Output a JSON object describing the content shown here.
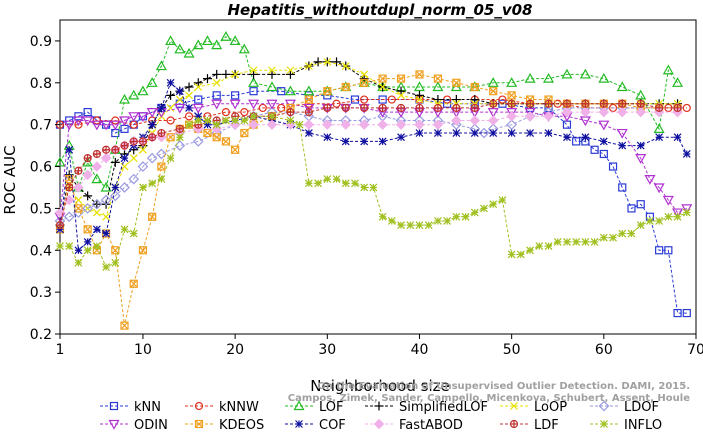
{
  "chart_data": {
    "type": "line",
    "title": "Hepatitis_withoutdupl_norm_05_v08",
    "xlabel": "Neighborhood size",
    "ylabel": "ROC AUC",
    "xlim": [
      1,
      70
    ],
    "ylim": [
      0.2,
      0.95
    ],
    "xticks": [
      1,
      10,
      20,
      30,
      40,
      50,
      60,
      70
    ],
    "yticks": [
      0.2,
      0.3,
      0.4,
      0.5,
      0.6,
      0.7,
      0.8,
      0.9
    ],
    "legend_position": "bottom",
    "watermark": "Campos, Zimek, Sander, Campello, Micenkova, Schubert, Assent, Houle",
    "watermark_line1": "On the Evaluation of Unsupervised Outlier Detection. DAMI, 2015.",
    "series": [
      {
        "name": "kNN",
        "color": "#2a3ad6",
        "marker": "square",
        "x": [
          1,
          2,
          3,
          4,
          5,
          6,
          7,
          8,
          9,
          10,
          12,
          14,
          16,
          18,
          20,
          22,
          25,
          28,
          30,
          33,
          36,
          40,
          43,
          46,
          49,
          52,
          54,
          56,
          57,
          58,
          59,
          60,
          61,
          62,
          63,
          64,
          65,
          66,
          67,
          68,
          69
        ],
        "y": [
          0.7,
          0.71,
          0.72,
          0.73,
          0.71,
          0.7,
          0.68,
          0.69,
          0.7,
          0.72,
          0.74,
          0.75,
          0.76,
          0.77,
          0.77,
          0.78,
          0.78,
          0.77,
          0.77,
          0.76,
          0.76,
          0.76,
          0.75,
          0.75,
          0.75,
          0.74,
          0.74,
          0.7,
          0.66,
          0.66,
          0.64,
          0.63,
          0.6,
          0.55,
          0.5,
          0.51,
          0.48,
          0.4,
          0.4,
          0.25,
          0.25
        ]
      },
      {
        "name": "kNNW",
        "color": "#e03020",
        "marker": "circle",
        "x": [
          1,
          3,
          5,
          7,
          9,
          11,
          13,
          15,
          17,
          19,
          21,
          23,
          25,
          28,
          31,
          34,
          37,
          40,
          43,
          46,
          49,
          52,
          55,
          58,
          61,
          64,
          67,
          69
        ],
        "y": [
          0.7,
          0.7,
          0.71,
          0.71,
          0.7,
          0.71,
          0.71,
          0.72,
          0.72,
          0.73,
          0.73,
          0.74,
          0.74,
          0.75,
          0.75,
          0.76,
          0.76,
          0.76,
          0.76,
          0.76,
          0.76,
          0.75,
          0.75,
          0.74,
          0.74,
          0.74,
          0.74,
          0.74
        ]
      },
      {
        "name": "LOF",
        "color": "#22bb22",
        "marker": "triangle-up",
        "x": [
          1,
          2,
          3,
          4,
          5,
          6,
          7,
          8,
          9,
          10,
          11,
          12,
          13,
          14,
          15,
          16,
          17,
          18,
          19,
          20,
          21,
          22,
          24,
          26,
          28,
          30,
          32,
          34,
          36,
          38,
          40,
          42,
          44,
          46,
          48,
          50,
          52,
          54,
          56,
          58,
          60,
          62,
          64,
          66,
          67,
          68
        ],
        "y": [
          0.61,
          0.65,
          0.55,
          0.61,
          0.57,
          0.55,
          0.64,
          0.76,
          0.77,
          0.78,
          0.8,
          0.84,
          0.9,
          0.88,
          0.87,
          0.89,
          0.9,
          0.89,
          0.91,
          0.9,
          0.88,
          0.8,
          0.79,
          0.78,
          0.78,
          0.78,
          0.79,
          0.8,
          0.79,
          0.79,
          0.79,
          0.79,
          0.79,
          0.79,
          0.8,
          0.8,
          0.81,
          0.81,
          0.82,
          0.82,
          0.81,
          0.79,
          0.77,
          0.69,
          0.83,
          0.8
        ]
      },
      {
        "name": "SimplifiedLOF",
        "color": "#000000",
        "marker": "plus",
        "x": [
          1,
          2,
          3,
          4,
          5,
          6,
          7,
          8,
          9,
          10,
          11,
          12,
          13,
          14,
          15,
          16,
          17,
          18,
          19,
          20,
          22,
          24,
          26,
          28,
          29,
          30,
          31,
          32,
          34,
          36,
          38,
          40,
          42,
          44,
          46,
          48,
          50,
          52,
          54,
          56,
          58,
          60,
          62,
          64,
          66,
          68
        ],
        "y": [
          0.46,
          0.58,
          0.55,
          0.53,
          0.51,
          0.51,
          0.61,
          0.63,
          0.64,
          0.65,
          0.7,
          0.74,
          0.77,
          0.78,
          0.79,
          0.8,
          0.81,
          0.82,
          0.82,
          0.82,
          0.82,
          0.82,
          0.82,
          0.84,
          0.85,
          0.85,
          0.85,
          0.84,
          0.81,
          0.79,
          0.78,
          0.77,
          0.76,
          0.76,
          0.76,
          0.75,
          0.75,
          0.75,
          0.75,
          0.75,
          0.75,
          0.75,
          0.75,
          0.75,
          0.75,
          0.75
        ]
      },
      {
        "name": "LoOP",
        "color": "#e8e000",
        "marker": "x",
        "x": [
          1,
          2,
          3,
          4,
          5,
          6,
          7,
          8,
          9,
          10,
          11,
          12,
          13,
          14,
          15,
          16,
          18,
          20,
          22,
          24,
          26,
          28,
          30,
          32,
          34,
          36,
          38,
          40,
          42,
          44,
          46,
          48,
          50,
          52,
          54,
          56,
          58,
          60,
          62,
          64,
          66,
          68
        ],
        "y": [
          0.46,
          0.55,
          0.52,
          0.5,
          0.49,
          0.48,
          0.55,
          0.6,
          0.62,
          0.64,
          0.68,
          0.72,
          0.74,
          0.76,
          0.77,
          0.79,
          0.8,
          0.82,
          0.83,
          0.83,
          0.83,
          0.84,
          0.85,
          0.84,
          0.82,
          0.79,
          0.77,
          0.76,
          0.75,
          0.75,
          0.75,
          0.75,
          0.75,
          0.75,
          0.75,
          0.75,
          0.75,
          0.75,
          0.75,
          0.75,
          0.75,
          0.75
        ]
      },
      {
        "name": "LDOF",
        "color": "#9a9ae0",
        "marker": "diamond",
        "x": [
          1,
          2,
          3,
          4,
          5,
          6,
          7,
          8,
          9,
          10,
          11,
          12,
          14,
          16,
          18,
          20,
          22,
          24,
          26,
          28,
          30,
          32,
          34,
          36,
          38,
          40,
          42,
          44,
          46,
          47,
          48,
          50,
          52,
          54,
          56,
          58,
          60,
          62,
          64,
          66,
          68
        ],
        "y": [
          0.47,
          0.48,
          0.49,
          0.5,
          0.51,
          0.52,
          0.53,
          0.55,
          0.57,
          0.6,
          0.62,
          0.63,
          0.65,
          0.66,
          0.68,
          0.7,
          0.72,
          0.73,
          0.73,
          0.72,
          0.71,
          0.71,
          0.71,
          0.72,
          0.71,
          0.71,
          0.71,
          0.7,
          0.69,
          0.68,
          0.69,
          0.7,
          0.72,
          0.73,
          0.74,
          0.74,
          0.74,
          0.74,
          0.74,
          0.74,
          0.74
        ]
      },
      {
        "name": "ODIN",
        "color": "#b030d0",
        "marker": "triangle-down",
        "x": [
          1,
          2,
          3,
          4,
          5,
          6,
          7,
          8,
          9,
          10,
          11,
          12,
          14,
          16,
          18,
          20,
          22,
          24,
          26,
          28,
          30,
          32,
          34,
          36,
          38,
          40,
          42,
          44,
          46,
          48,
          50,
          52,
          54,
          56,
          58,
          60,
          62,
          64,
          65,
          66,
          67,
          68,
          69
        ],
        "y": [
          0.48,
          0.7,
          0.71,
          0.71,
          0.7,
          0.7,
          0.7,
          0.71,
          0.72,
          0.72,
          0.73,
          0.73,
          0.74,
          0.74,
          0.75,
          0.75,
          0.75,
          0.75,
          0.75,
          0.74,
          0.74,
          0.74,
          0.74,
          0.73,
          0.73,
          0.73,
          0.73,
          0.73,
          0.73,
          0.73,
          0.73,
          0.73,
          0.72,
          0.72,
          0.71,
          0.7,
          0.68,
          0.62,
          0.57,
          0.55,
          0.52,
          0.49,
          0.5
        ]
      },
      {
        "name": "KDEOS",
        "color": "#f0a020",
        "marker": "square-x",
        "x": [
          1,
          2,
          3,
          4,
          5,
          6,
          7,
          8,
          9,
          10,
          11,
          12,
          13,
          14,
          15,
          16,
          17,
          18,
          19,
          20,
          21,
          22,
          24,
          26,
          28,
          30,
          32,
          34,
          36,
          38,
          40,
          42,
          44,
          46,
          48,
          50,
          52,
          54,
          56,
          58,
          60,
          62,
          64,
          66,
          68
        ],
        "y": [
          0.45,
          0.57,
          0.5,
          0.45,
          0.4,
          0.44,
          0.4,
          0.22,
          0.32,
          0.4,
          0.48,
          0.6,
          0.67,
          0.69,
          0.7,
          0.69,
          0.68,
          0.67,
          0.66,
          0.64,
          0.68,
          0.7,
          0.72,
          0.74,
          0.76,
          0.78,
          0.79,
          0.8,
          0.81,
          0.81,
          0.82,
          0.81,
          0.8,
          0.79,
          0.78,
          0.77,
          0.76,
          0.76,
          0.75,
          0.75,
          0.75,
          0.75,
          0.74,
          0.74,
          0.74
        ]
      },
      {
        "name": "COF",
        "color": "#1010a0",
        "marker": "asterisk",
        "x": [
          1,
          2,
          3,
          4,
          5,
          6,
          7,
          8,
          9,
          10,
          11,
          12,
          13,
          14,
          15,
          16,
          17,
          18,
          20,
          22,
          24,
          26,
          28,
          30,
          32,
          34,
          36,
          38,
          40,
          42,
          44,
          46,
          48,
          50,
          52,
          54,
          56,
          58,
          60,
          62,
          64,
          66,
          68,
          69
        ],
        "y": [
          0.45,
          0.64,
          0.4,
          0.42,
          0.45,
          0.44,
          0.55,
          0.62,
          0.65,
          0.67,
          0.7,
          0.74,
          0.8,
          0.78,
          0.74,
          0.72,
          0.7,
          0.7,
          0.71,
          0.72,
          0.71,
          0.7,
          0.68,
          0.67,
          0.66,
          0.66,
          0.66,
          0.67,
          0.68,
          0.68,
          0.68,
          0.68,
          0.68,
          0.68,
          0.68,
          0.68,
          0.67,
          0.67,
          0.66,
          0.65,
          0.65,
          0.67,
          0.67,
          0.63
        ]
      },
      {
        "name": "FastABOD",
        "color": "#f0b0e8",
        "marker": "diamond-filled",
        "x": [
          1,
          2,
          3,
          4,
          5,
          6,
          7,
          8,
          9,
          10,
          11,
          12,
          14,
          16,
          18,
          20,
          22,
          24,
          26,
          28,
          30,
          32,
          34,
          36,
          38,
          40,
          42,
          44,
          46,
          48,
          50,
          52,
          54,
          56,
          58,
          60,
          62,
          64,
          66,
          68
        ],
        "y": [
          0.49,
          0.52,
          0.55,
          0.58,
          0.6,
          0.62,
          0.64,
          0.65,
          0.66,
          0.66,
          0.67,
          0.67,
          0.68,
          0.69,
          0.69,
          0.7,
          0.7,
          0.7,
          0.7,
          0.7,
          0.7,
          0.7,
          0.7,
          0.7,
          0.7,
          0.7,
          0.7,
          0.71,
          0.71,
          0.71,
          0.72,
          0.72,
          0.72,
          0.73,
          0.73,
          0.73,
          0.73,
          0.73,
          0.73,
          0.73
        ]
      },
      {
        "name": "LDF",
        "color": "#c03030",
        "marker": "circle-plus",
        "x": [
          1,
          2,
          3,
          4,
          5,
          6,
          7,
          8,
          9,
          10,
          11,
          12,
          14,
          16,
          18,
          20,
          22,
          24,
          26,
          28,
          30,
          32,
          34,
          36,
          38,
          40,
          42,
          44,
          46,
          48,
          50,
          52,
          54,
          56,
          58,
          60,
          62,
          64,
          66,
          68
        ],
        "y": [
          0.46,
          0.55,
          0.59,
          0.62,
          0.63,
          0.64,
          0.64,
          0.65,
          0.66,
          0.66,
          0.67,
          0.68,
          0.69,
          0.7,
          0.71,
          0.72,
          0.72,
          0.72,
          0.73,
          0.73,
          0.74,
          0.74,
          0.74,
          0.74,
          0.74,
          0.74,
          0.74,
          0.74,
          0.74,
          0.75,
          0.75,
          0.75,
          0.75,
          0.75,
          0.75,
          0.75,
          0.75,
          0.75,
          0.74,
          0.74
        ]
      },
      {
        "name": "INFLO",
        "color": "#a0c020",
        "marker": "square-cross",
        "x": [
          1,
          2,
          3,
          4,
          5,
          6,
          7,
          8,
          9,
          10,
          11,
          12,
          13,
          14,
          15,
          16,
          17,
          18,
          19,
          20,
          21,
          22,
          24,
          26,
          27,
          28,
          29,
          30,
          31,
          32,
          33,
          34,
          35,
          36,
          37,
          38,
          39,
          40,
          41,
          42,
          43,
          44,
          45,
          46,
          47,
          48,
          49,
          50,
          51,
          52,
          53,
          54,
          55,
          56,
          57,
          58,
          59,
          60,
          61,
          62,
          63,
          64,
          65,
          66,
          67,
          68,
          69
        ],
        "y": [
          0.41,
          0.41,
          0.37,
          0.4,
          0.41,
          0.36,
          0.37,
          0.45,
          0.44,
          0.55,
          0.56,
          0.57,
          0.62,
          0.67,
          0.7,
          0.71,
          0.71,
          0.7,
          0.71,
          0.71,
          0.71,
          0.72,
          0.72,
          0.71,
          0.7,
          0.56,
          0.56,
          0.57,
          0.57,
          0.56,
          0.56,
          0.55,
          0.55,
          0.48,
          0.47,
          0.46,
          0.46,
          0.46,
          0.46,
          0.47,
          0.47,
          0.48,
          0.48,
          0.49,
          0.5,
          0.51,
          0.52,
          0.39,
          0.39,
          0.4,
          0.41,
          0.41,
          0.42,
          0.42,
          0.42,
          0.42,
          0.42,
          0.43,
          0.43,
          0.44,
          0.44,
          0.46,
          0.47,
          0.47,
          0.48,
          0.48,
          0.49
        ]
      }
    ]
  }
}
